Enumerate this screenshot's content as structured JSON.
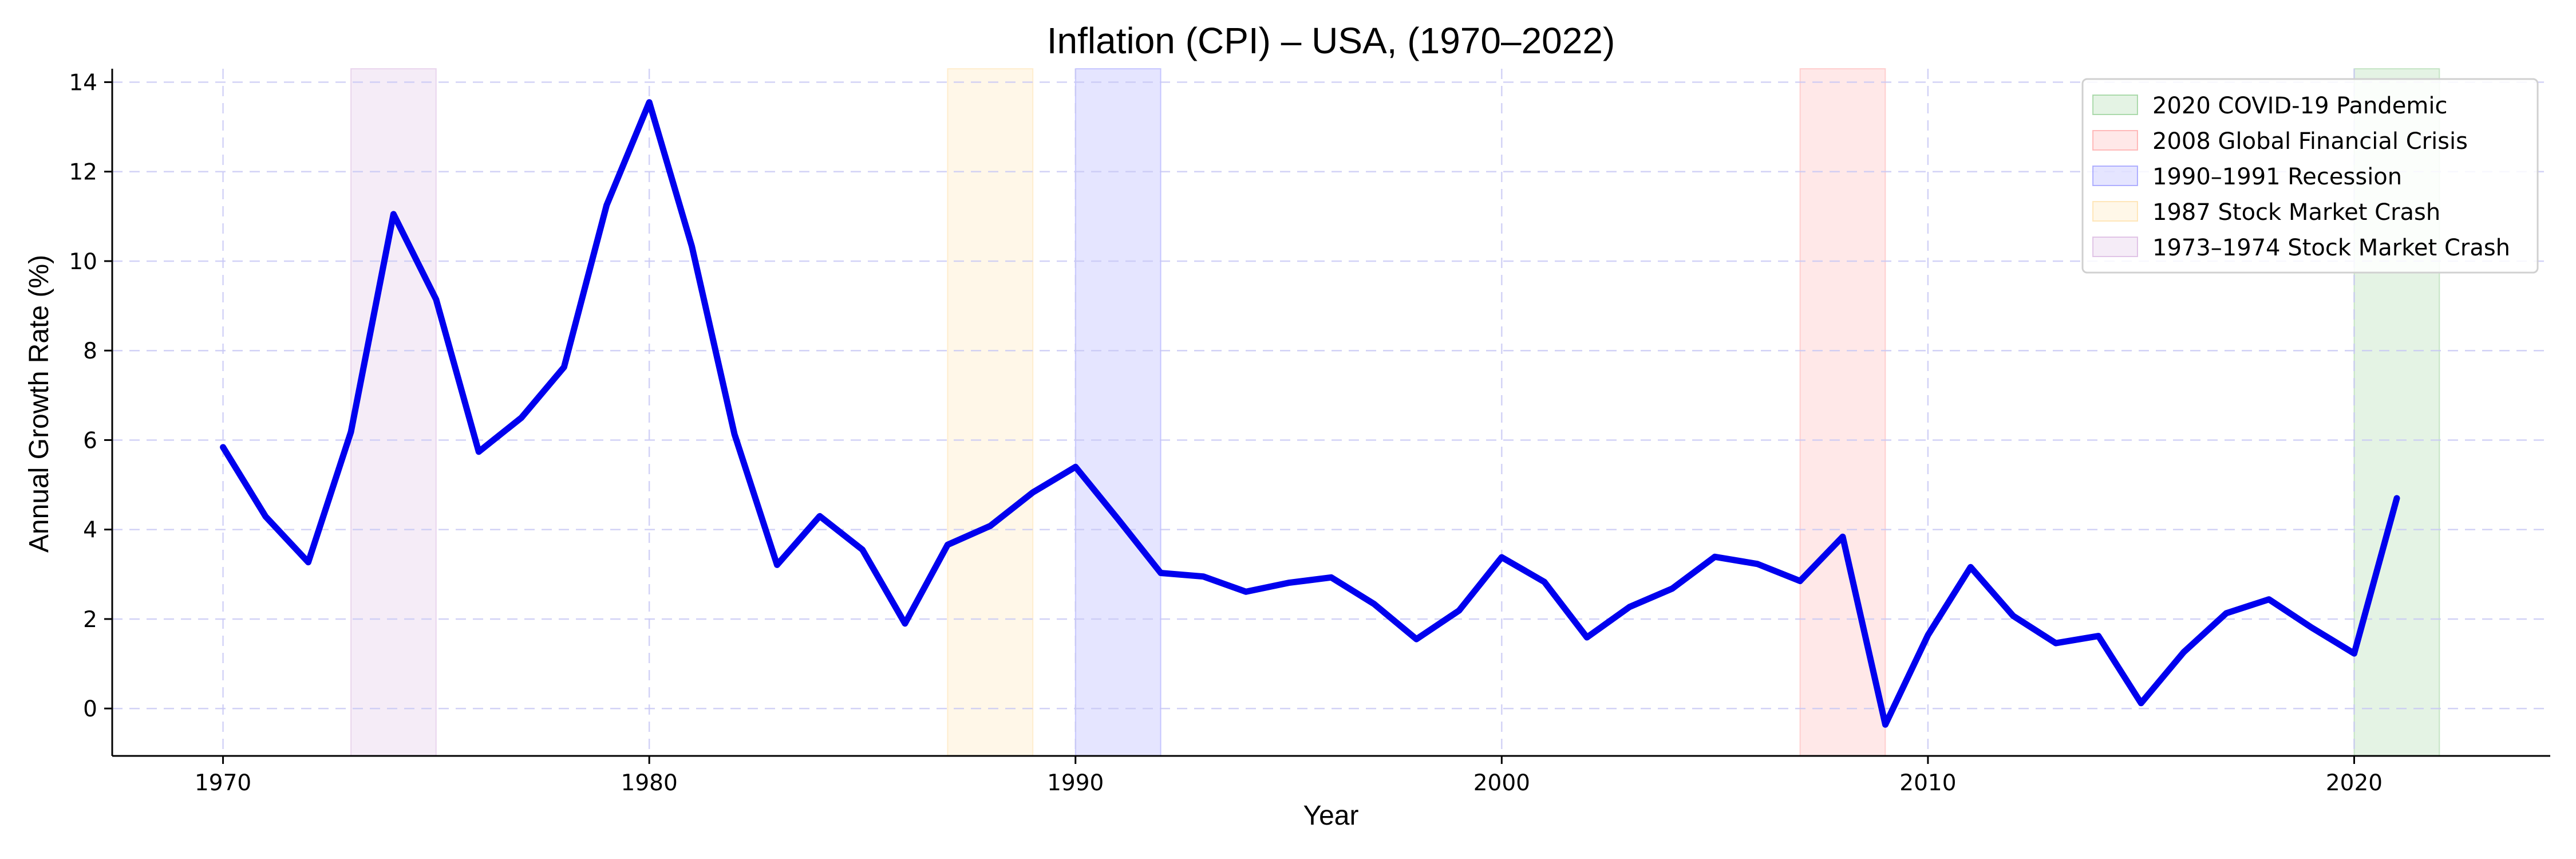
{
  "chart_data": {
    "type": "line",
    "title": "Inflation (CPI) – USA, (1970–2022)",
    "xlabel": "Year",
    "ylabel": "Annual Growth Rate (%)",
    "xlim": [
      1967.4,
      2024.6
    ],
    "ylim": [
      -1.06,
      14.3
    ],
    "x_ticks": [
      1970,
      1980,
      1990,
      2000,
      2010,
      2020
    ],
    "y_ticks": [
      0,
      2,
      4,
      6,
      8,
      10,
      12,
      14
    ],
    "grid": true,
    "legend_position": "top-right",
    "series": [
      {
        "color": "#0000ee",
        "x": [
          1970,
          1971,
          1972,
          1973,
          1974,
          1975,
          1976,
          1977,
          1978,
          1979,
          1980,
          1981,
          1982,
          1983,
          1984,
          1985,
          1986,
          1987,
          1988,
          1989,
          1990,
          1991,
          1992,
          1993,
          1994,
          1995,
          1996,
          1997,
          1998,
          1999,
          2000,
          2001,
          2002,
          2003,
          2004,
          2005,
          2006,
          2007,
          2008,
          2009,
          2010,
          2011,
          2012,
          2013,
          2014,
          2015,
          2016,
          2017,
          2018,
          2019,
          2020,
          2021
        ],
        "y": [
          5.84,
          4.29,
          3.27,
          6.18,
          11.05,
          9.14,
          5.74,
          6.5,
          7.63,
          11.25,
          13.55,
          10.33,
          6.13,
          3.21,
          4.3,
          3.55,
          1.9,
          3.66,
          4.08,
          4.83,
          5.4,
          4.23,
          3.03,
          2.95,
          2.61,
          2.81,
          2.93,
          2.34,
          1.55,
          2.19,
          3.38,
          2.83,
          1.59,
          2.27,
          2.68,
          3.39,
          3.23,
          2.85,
          3.84,
          -0.36,
          1.64,
          3.16,
          2.07,
          1.46,
          1.62,
          0.12,
          1.26,
          2.13,
          2.44,
          1.81,
          1.23,
          4.7
        ]
      }
    ],
    "events": [
      {
        "label": "2020 COVID-19 Pandemic",
        "start": 2020,
        "end": 2022,
        "color": "#2ca02c"
      },
      {
        "label": "2008 Global Financial Crisis",
        "start": 2007,
        "end": 2009,
        "color": "#ff4d4d"
      },
      {
        "label": "1990–1991 Recession",
        "start": 1990,
        "end": 1992,
        "color": "#3333ff"
      },
      {
        "label": "1987 Stock Market Crash",
        "start": 1987,
        "end": 1989,
        "color": "#ffc04d"
      },
      {
        "label": "1973–1974 Stock Market Crash",
        "start": 1973,
        "end": 1975,
        "color": "#b36bbf"
      }
    ]
  }
}
